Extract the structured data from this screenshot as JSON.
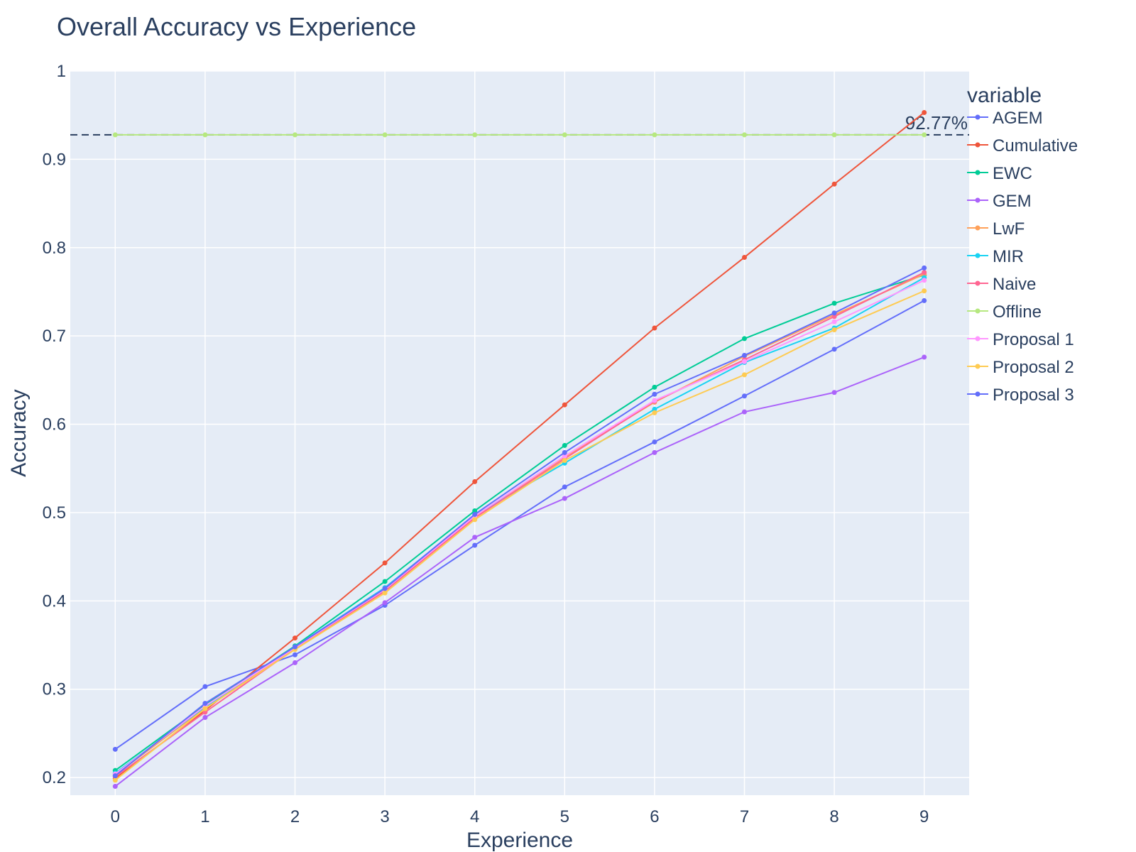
{
  "chart_data": {
    "type": "line",
    "title": "Overall Accuracy vs Experience",
    "xlabel": "Experience",
    "ylabel": "Accuracy",
    "xlim": [
      -0.5,
      9.5
    ],
    "ylim": [
      0.18,
      1.0
    ],
    "xticks": [
      0,
      1,
      2,
      3,
      4,
      5,
      6,
      7,
      8,
      9
    ],
    "yticks": [
      0.2,
      0.3,
      0.4,
      0.5,
      0.6,
      0.7,
      0.8,
      0.9,
      1
    ],
    "ytick_labels": [
      "0.2",
      "0.3",
      "0.4",
      "0.5",
      "0.6",
      "0.7",
      "0.8",
      "0.9",
      "1"
    ],
    "grid": true,
    "legend": {
      "title": "variable",
      "position": "right"
    },
    "reference_line": {
      "y": 0.9277,
      "label": "92.77%",
      "style": "dashed",
      "color": "#2a3f5f"
    },
    "x": [
      0,
      1,
      2,
      3,
      4,
      5,
      6,
      7,
      8,
      9
    ],
    "series": [
      {
        "name": "AGEM",
        "color": "#636efa",
        "values": [
          0.232,
          0.303,
          0.339,
          0.395,
          0.463,
          0.529,
          0.58,
          0.632,
          0.685,
          0.74
        ]
      },
      {
        "name": "Cumulative",
        "color": "#EF553B",
        "values": [
          0.199,
          0.276,
          0.358,
          0.443,
          0.535,
          0.622,
          0.709,
          0.789,
          0.872,
          0.953
        ]
      },
      {
        "name": "EWC",
        "color": "#00cc96",
        "values": [
          0.208,
          0.282,
          0.349,
          0.422,
          0.502,
          0.576,
          0.642,
          0.697,
          0.737,
          0.769
        ]
      },
      {
        "name": "GEM",
        "color": "#ab63fa",
        "values": [
          0.19,
          0.268,
          0.33,
          0.398,
          0.472,
          0.516,
          0.568,
          0.614,
          0.636,
          0.676
        ]
      },
      {
        "name": "LwF",
        "color": "#FFA15A",
        "values": [
          0.203,
          0.279,
          0.347,
          0.412,
          0.495,
          0.563,
          0.625,
          0.677,
          0.724,
          0.77
        ]
      },
      {
        "name": "MIR",
        "color": "#19d3f3",
        "values": [
          0.205,
          0.28,
          0.348,
          0.415,
          0.497,
          0.556,
          0.617,
          0.67,
          0.709,
          0.766
        ]
      },
      {
        "name": "Naive",
        "color": "#FF6692",
        "values": [
          0.201,
          0.274,
          0.346,
          0.411,
          0.494,
          0.561,
          0.626,
          0.673,
          0.722,
          0.772
        ]
      },
      {
        "name": "Offline",
        "color": "#B6E880",
        "values": [
          0.9277,
          0.9277,
          0.9277,
          0.9277,
          0.9277,
          0.9277,
          0.9277,
          0.9277,
          0.9277,
          0.9277
        ]
      },
      {
        "name": "Proposal 1",
        "color": "#FF97FF",
        "values": [
          0.204,
          0.281,
          0.347,
          0.413,
          0.496,
          0.564,
          0.627,
          0.671,
          0.716,
          0.763
        ]
      },
      {
        "name": "Proposal 2",
        "color": "#FECB52",
        "values": [
          0.197,
          0.278,
          0.345,
          0.409,
          0.492,
          0.559,
          0.613,
          0.656,
          0.707,
          0.751
        ]
      },
      {
        "name": "Proposal 3",
        "color": "#636efa",
        "values": [
          0.202,
          0.284,
          0.348,
          0.414,
          0.498,
          0.568,
          0.634,
          0.678,
          0.726,
          0.777
        ]
      }
    ]
  }
}
